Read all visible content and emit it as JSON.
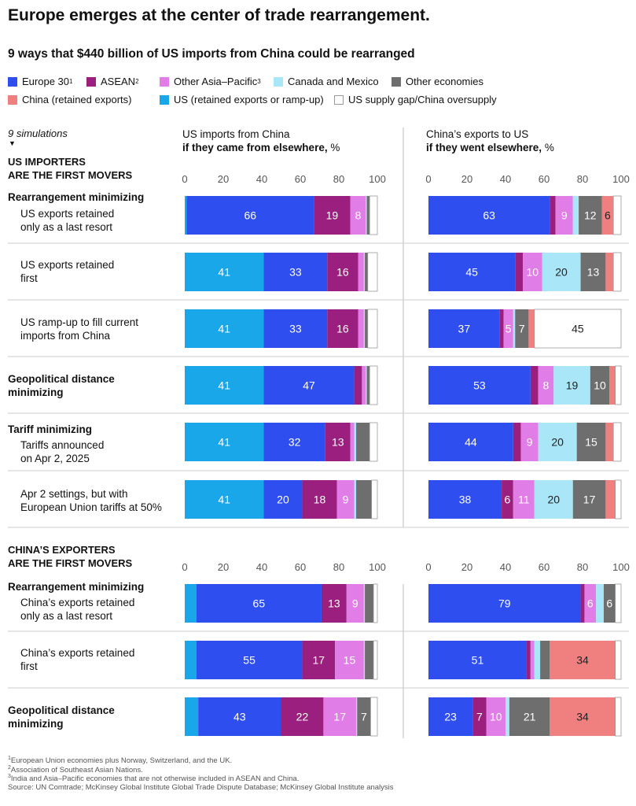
{
  "title": "Europe emerges at the center of trade rearrangement.",
  "subtitle": "9 ways that $440 billion of US imports from China could be rearranged",
  "legend": [
    {
      "label": "Europe 30",
      "sup": "1",
      "color": "#2f4ef0"
    },
    {
      "label": "ASEAN",
      "sup": "2",
      "color": "#9b1f7e"
    },
    {
      "label": "Other Asia–Pacific",
      "sup": "3",
      "color": "#e07de6"
    },
    {
      "label": "Canada and Mexico",
      "sup": "",
      "color": "#a9e6f8"
    },
    {
      "label": "Other economies",
      "sup": "",
      "color": "#6e6e6e"
    },
    {
      "label": "China (retained exports)",
      "sup": "",
      "color": "#f08080"
    },
    {
      "label": "US (retained exports or ramp-up)",
      "sup": "",
      "color": "#1aa7ea"
    },
    {
      "label": "US supply gap/China oversupply",
      "sup": "",
      "color": "#ffffff"
    }
  ],
  "note": "9 simulations",
  "columns": {
    "left_line1": "US imports from China",
    "left_line2_bold": "if they came from elsewhere,",
    "left_unit": " %",
    "right_line1": "China’s exports to US",
    "right_line2_bold": "if they went elsewhere,",
    "right_unit": " %"
  },
  "axis_ticks": [
    "0",
    "20",
    "40",
    "60",
    "80",
    "100"
  ],
  "sections": {
    "us": "US IMPORTERS\nARE THE FIRST MOVERS",
    "china": "CHINA’S EXPORTERS\nARE THE FIRST MOVERS"
  },
  "groups": {
    "g1": "Rearrangement minimizing",
    "g2": "Geopolitical distance\nminimizing",
    "g3": "Tariff minimizing",
    "g4": "Rearrangement minimizing",
    "g5": "Geopolitical distance\nminimizing"
  },
  "row_labels": {
    "r1": "US exports retained\nonly as a last resort",
    "r2": "US exports retained\nfirst",
    "r3": "US ramp-up to fill current\nimports from China",
    "r5": "Tariffs announced\non Apr 2, 2025",
    "r6": "Apr 2 settings, but with\nEuropean Union tariffs at 50%",
    "r7": "China’s exports retained\nonly as a last resort",
    "r8": "China’s exports retained\nfirst"
  },
  "chart_data": {
    "type": "bar",
    "stacked": true,
    "orientation": "horizontal",
    "xlim": [
      0,
      100
    ],
    "series_order": [
      "US (retained exports or ramp-up)",
      "Europe 30",
      "ASEAN",
      "Other Asia–Pacific",
      "Canada and Mexico",
      "Other economies",
      "China (retained exports)",
      "US supply gap/China oversupply"
    ],
    "rows": [
      {
        "left": [
          1,
          66,
          19,
          8,
          0.5,
          1.5,
          0,
          4
        ],
        "right": [
          0,
          63,
          3,
          9,
          3,
          12,
          6,
          4
        ]
      },
      {
        "left": [
          41,
          33,
          16,
          3,
          0.5,
          1.5,
          0,
          5
        ],
        "right": [
          0,
          45,
          4,
          10,
          20,
          13,
          4,
          4
        ]
      },
      {
        "left": [
          41,
          33,
          16,
          3,
          0.5,
          1.5,
          0,
          5
        ],
        "right": [
          0,
          37,
          2,
          5,
          1,
          7,
          3,
          45
        ]
      },
      {
        "left": [
          41,
          47,
          4,
          2,
          0.5,
          1.5,
          0,
          4
        ],
        "right": [
          0,
          53,
          4,
          8,
          19,
          10,
          3,
          3
        ]
      },
      {
        "left": [
          41,
          32,
          13,
          2,
          1,
          7,
          0,
          4
        ],
        "right": [
          0,
          44,
          4,
          9,
          20,
          15,
          4,
          4
        ]
      },
      {
        "left": [
          41,
          20,
          18,
          9,
          1,
          8,
          0,
          3
        ],
        "right": [
          0,
          38,
          6,
          11,
          20,
          17,
          5,
          3
        ]
      },
      {
        "left": [
          6,
          65,
          13,
          9,
          0.5,
          4.5,
          0,
          2
        ],
        "right": [
          0,
          79,
          2,
          6,
          4,
          6,
          0,
          3
        ]
      },
      {
        "left": [
          6,
          55,
          17,
          15,
          0.5,
          4.5,
          0,
          2
        ],
        "right": [
          0,
          51,
          2,
          2,
          3,
          5,
          34,
          3
        ]
      },
      {
        "left": [
          7,
          43,
          22,
          17,
          0.5,
          7,
          0,
          3.5
        ],
        "right": [
          0,
          23,
          7,
          10,
          2,
          21,
          34,
          3
        ]
      }
    ],
    "value_labels": [
      {
        "left": [
          null,
          "66",
          "19",
          "8",
          null,
          null,
          null,
          null
        ],
        "right": [
          null,
          "63",
          null,
          "9",
          null,
          "12",
          "6",
          null
        ]
      },
      {
        "left": [
          "41",
          "33",
          "16",
          null,
          null,
          null,
          null,
          null
        ],
        "right": [
          null,
          "45",
          null,
          "10",
          "20",
          "13",
          null,
          null
        ]
      },
      {
        "left": [
          "41",
          "33",
          "16",
          null,
          null,
          null,
          null,
          null
        ],
        "right": [
          null,
          "37",
          null,
          "5",
          null,
          "7",
          null,
          "45"
        ]
      },
      {
        "left": [
          "41",
          "47",
          null,
          null,
          null,
          null,
          null,
          null
        ],
        "right": [
          null,
          "53",
          null,
          "8",
          "19",
          "10",
          null,
          null
        ]
      },
      {
        "left": [
          "41",
          "32",
          "13",
          null,
          null,
          null,
          null,
          null
        ],
        "right": [
          null,
          "44",
          null,
          "9",
          "20",
          "15",
          null,
          null
        ]
      },
      {
        "left": [
          "41",
          "20",
          "18",
          "9",
          null,
          null,
          null,
          null
        ],
        "right": [
          null,
          "38",
          "6",
          "11",
          "20",
          "17",
          null,
          null
        ]
      },
      {
        "left": [
          null,
          "65",
          "13",
          "9",
          null,
          null,
          null,
          null
        ],
        "right": [
          null,
          "79",
          null,
          "6",
          null,
          "6",
          null,
          null
        ]
      },
      {
        "left": [
          null,
          "55",
          "17",
          "15",
          null,
          null,
          null,
          null
        ],
        "right": [
          null,
          "51",
          null,
          null,
          null,
          null,
          "34",
          null
        ]
      },
      {
        "left": [
          null,
          "43",
          "22",
          "17",
          null,
          "7",
          null,
          null
        ],
        "right": [
          null,
          "23",
          "7",
          "10",
          null,
          "21",
          "34",
          null
        ]
      }
    ]
  },
  "footnotes": [
    {
      "sup": "1",
      "text": "European Union economies plus Norway, Switzerland, and the UK."
    },
    {
      "sup": "2",
      "text": "Association of Southeast Asian Nations."
    },
    {
      "sup": "3",
      "text": "India and Asia–Pacific economies that are not otherwise included in ASEAN and China."
    },
    {
      "sup": "",
      "text": "Source: UN Comtrade; McKinsey Global Institute Global Trade Dispute Database; McKinsey Global Institute analysis"
    }
  ]
}
